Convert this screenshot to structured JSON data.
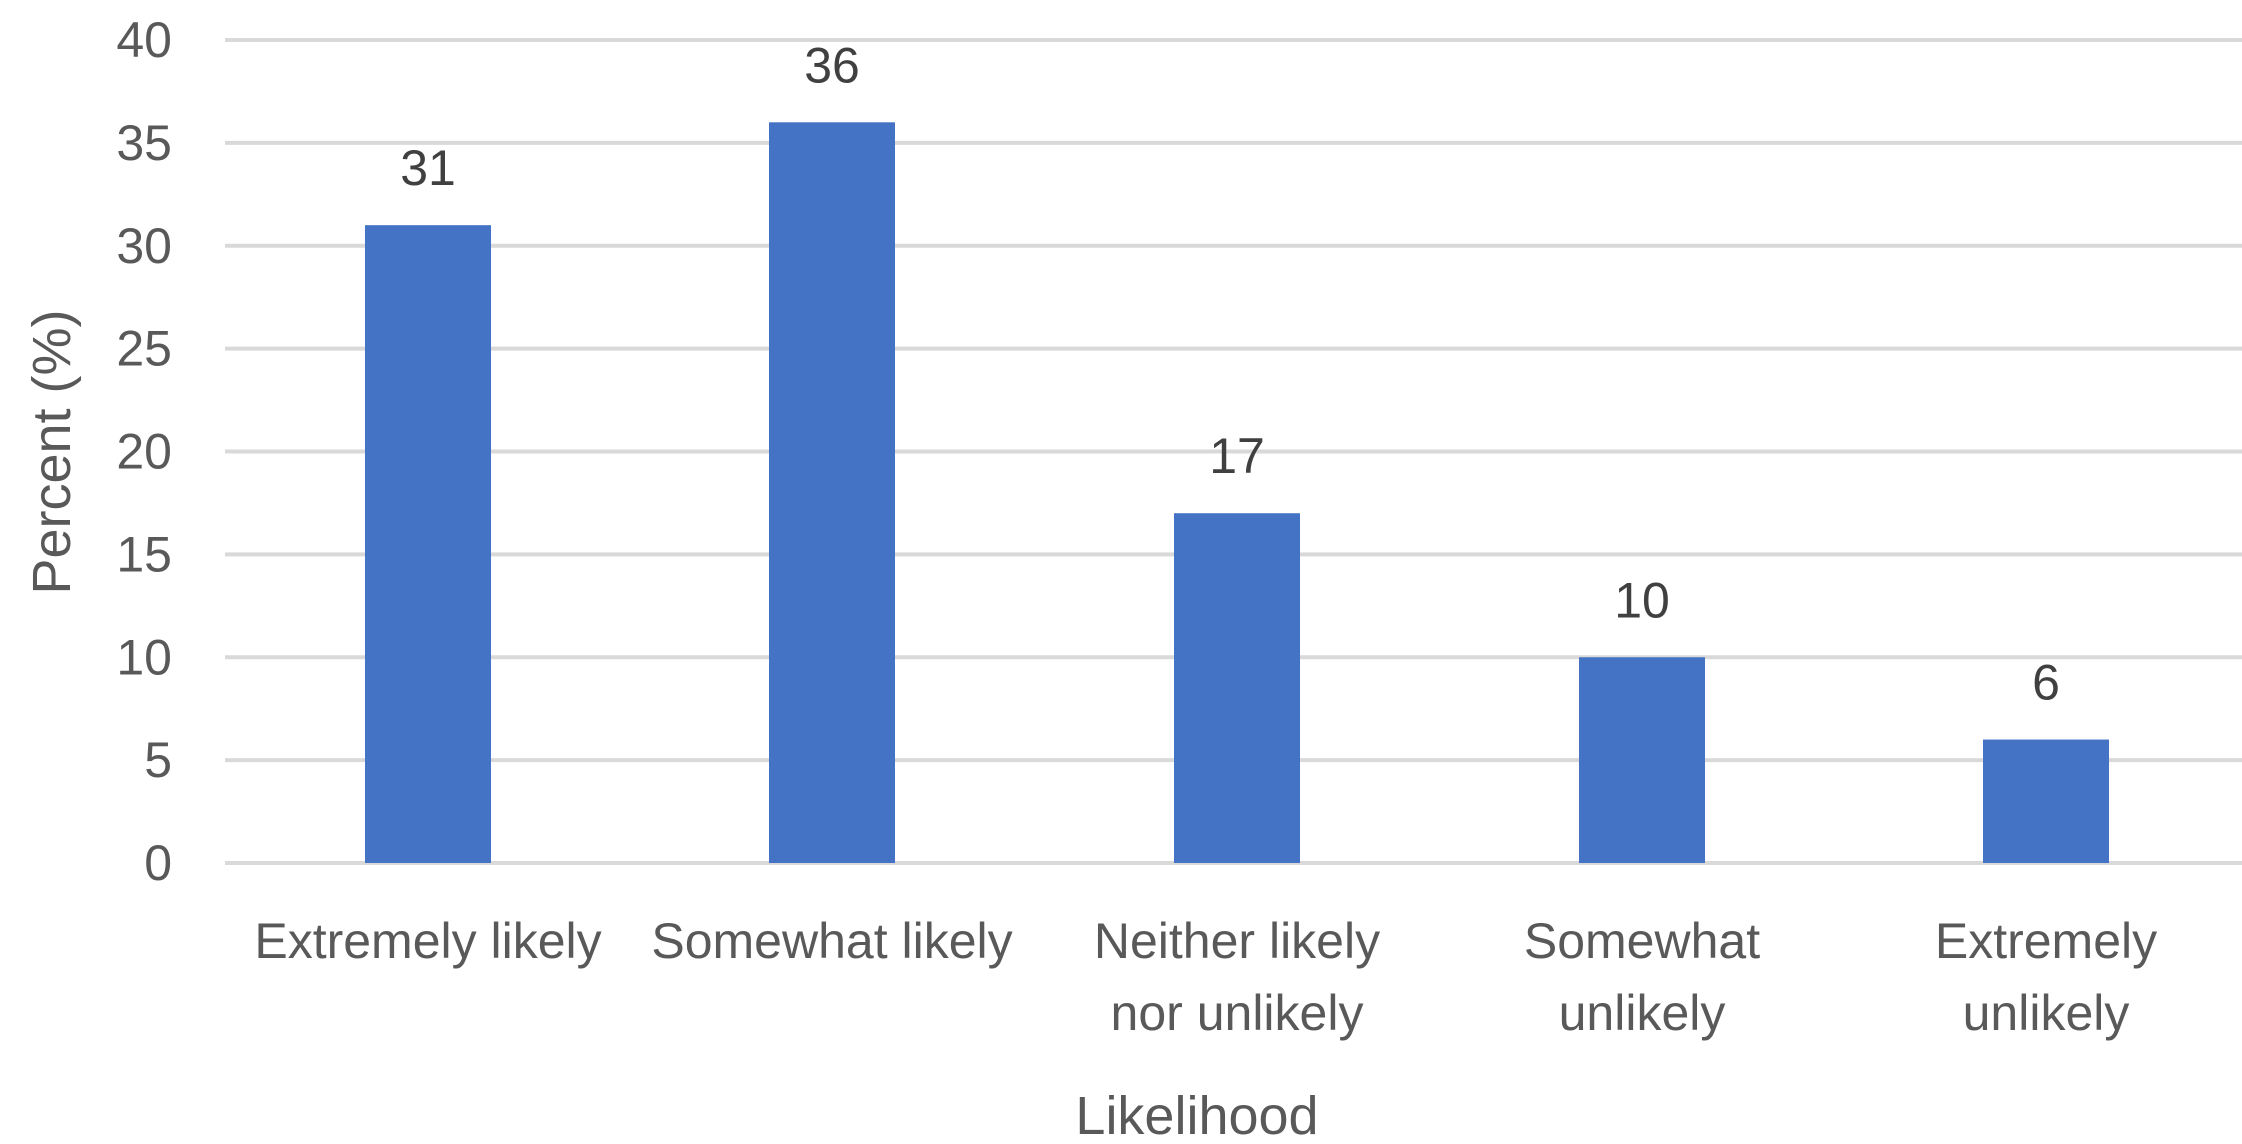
{
  "chart_data": {
    "type": "bar",
    "categories": [
      [
        "Extremely likely"
      ],
      [
        "Somewhat likely"
      ],
      [
        "Neither likely",
        "nor unlikely"
      ],
      [
        "Somewhat",
        "unlikely"
      ],
      [
        "Extremely",
        "unlikely"
      ]
    ],
    "values": [
      31,
      36,
      17,
      10,
      6
    ],
    "title": "",
    "xlabel": "Likelihood",
    "ylabel": "Percent (%)",
    "ylim": [
      0,
      40
    ],
    "ytick_step": 5,
    "grid": true,
    "legend": "none",
    "colors": {
      "bar": "#4472C4",
      "grid": "#D9D9D9",
      "text": "#595959"
    }
  }
}
